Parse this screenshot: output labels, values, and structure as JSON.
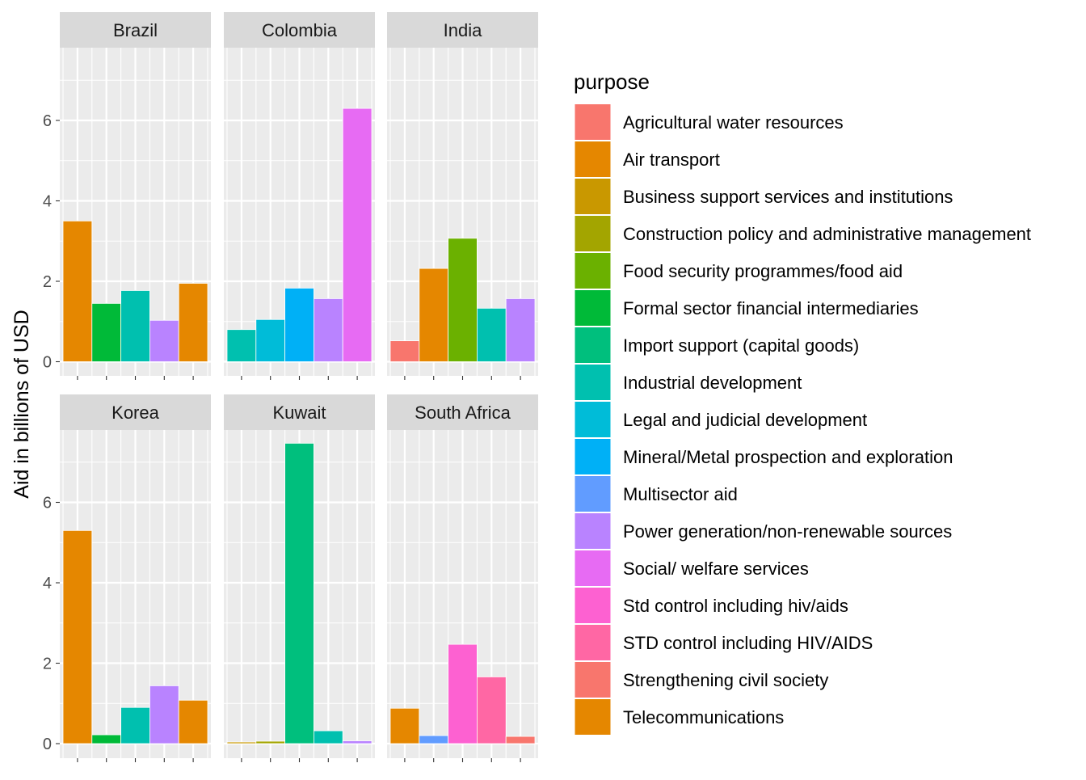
{
  "chart_data": {
    "type": "bar",
    "ylabel": "Aid in billions of USD",
    "xlabel": "",
    "ylim": [
      0,
      7.8
    ],
    "y_ticks": [
      0,
      2,
      4,
      6
    ],
    "grid": true,
    "legend": {
      "title": "purpose",
      "placement": "right",
      "entries": [
        {
          "label": "Agricultural water resources",
          "color": "#F8766D"
        },
        {
          "label": "Air transport",
          "color": "#E58700"
        },
        {
          "label": "Business support services and institutions",
          "color": "#C99800"
        },
        {
          "label": "Construction policy and administrative management",
          "color": "#A3A500"
        },
        {
          "label": "Food security programmes/food aid",
          "color": "#6BB100"
        },
        {
          "label": "Formal sector financial intermediaries",
          "color": "#00BA38"
        },
        {
          "label": "Import support (capital goods)",
          "color": "#00BF7D"
        },
        {
          "label": "Industrial development",
          "color": "#00C0AF"
        },
        {
          "label": "Legal and judicial development",
          "color": "#00BCD8"
        },
        {
          "label": "Mineral/Metal prospection and exploration",
          "color": "#00B0F6"
        },
        {
          "label": "Multisector aid",
          "color": "#619CFF"
        },
        {
          "label": "Power generation/non-renewable sources",
          "color": "#B983FF"
        },
        {
          "label": "Social/ welfare services",
          "color": "#E76BF3"
        },
        {
          "label": "Std control including hiv/aids",
          "color": "#FD61D1"
        },
        {
          "label": "STD control including HIV/AIDS",
          "color": "#FF67A4"
        },
        {
          "label": "Strengthening civil society",
          "color": "#F8766D"
        },
        {
          "label": "Telecommunications",
          "color": "#E58700"
        }
      ]
    },
    "panels": [
      {
        "title": "Brazil",
        "bars": [
          {
            "purpose": "Air transport",
            "value": 3.5
          },
          {
            "purpose": "Formal sector financial intermediaries",
            "value": 1.45
          },
          {
            "purpose": "Industrial development",
            "value": 1.77
          },
          {
            "purpose": "Power generation/non-renewable sources",
            "value": 1.03
          },
          {
            "purpose": "Telecommunications",
            "value": 1.95
          }
        ]
      },
      {
        "title": "Colombia",
        "bars": [
          {
            "purpose": "Industrial development",
            "value": 0.8
          },
          {
            "purpose": "Legal and judicial development",
            "value": 1.05
          },
          {
            "purpose": "Mineral/Metal prospection and exploration",
            "value": 1.83
          },
          {
            "purpose": "Power generation/non-renewable sources",
            "value": 1.57
          },
          {
            "purpose": "Social/ welfare services",
            "value": 6.3
          }
        ]
      },
      {
        "title": "India",
        "bars": [
          {
            "purpose": "Agricultural water resources",
            "value": 0.52
          },
          {
            "purpose": "Air transport",
            "value": 2.32
          },
          {
            "purpose": "Food security programmes/food aid",
            "value": 3.07
          },
          {
            "purpose": "Industrial development",
            "value": 1.33
          },
          {
            "purpose": "Power generation/non-renewable sources",
            "value": 1.57
          }
        ]
      },
      {
        "title": "Korea",
        "bars": [
          {
            "purpose": "Air transport",
            "value": 5.3
          },
          {
            "purpose": "Formal sector financial intermediaries",
            "value": 0.22
          },
          {
            "purpose": "Industrial development",
            "value": 0.9
          },
          {
            "purpose": "Power generation/non-renewable sources",
            "value": 1.44
          },
          {
            "purpose": "Telecommunications",
            "value": 1.08
          }
        ]
      },
      {
        "title": "Kuwait",
        "bars": [
          {
            "purpose": "Business support services and institutions",
            "value": 0.04
          },
          {
            "purpose": "Construction policy and administrative management",
            "value": 0.06
          },
          {
            "purpose": "Import support (capital goods)",
            "value": 7.47
          },
          {
            "purpose": "Industrial development",
            "value": 0.32
          },
          {
            "purpose": "Power generation/non-renewable sources",
            "value": 0.07
          }
        ]
      },
      {
        "title": "South Africa",
        "bars": [
          {
            "purpose": "Air transport",
            "value": 0.88
          },
          {
            "purpose": "Multisector aid",
            "value": 0.2
          },
          {
            "purpose": "Std control including hiv/aids",
            "value": 2.47
          },
          {
            "purpose": "STD control including HIV/AIDS",
            "value": 1.66
          },
          {
            "purpose": "Strengthening civil society",
            "value": 0.18
          }
        ]
      }
    ]
  }
}
